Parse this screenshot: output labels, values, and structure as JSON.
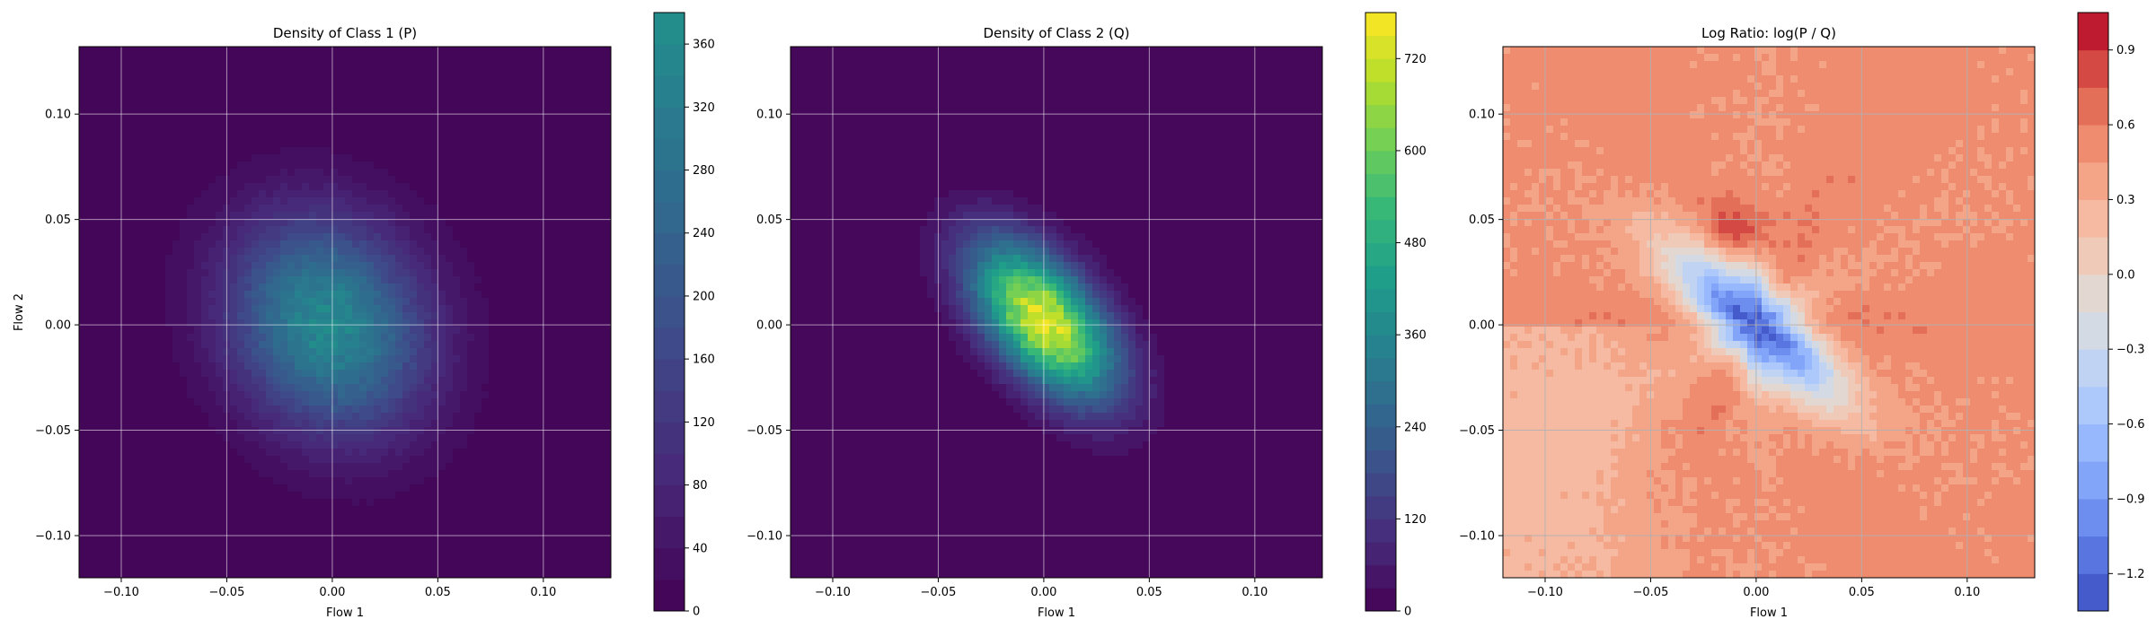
{
  "chart_data": [
    {
      "type": "contour",
      "title": "Density of Class 1 (P)",
      "xlabel": "Flow 1",
      "ylabel": "Flow 2",
      "xlim": [
        -0.12,
        0.132
      ],
      "ylim": [
        -0.12,
        0.132
      ],
      "xticks": [
        -0.1,
        -0.05,
        0.0,
        0.05,
        0.1
      ],
      "yticks": [
        -0.1,
        -0.05,
        0.0,
        0.05,
        0.1
      ],
      "xtick_labels": [
        "−0.10",
        "−0.05",
        "0.00",
        "0.05",
        "0.10"
      ],
      "ytick_labels": [
        "−0.10",
        "−0.05",
        "0.00",
        "0.05",
        "0.10"
      ],
      "grid": true,
      "colormap": "viridis",
      "colorbar": {
        "range": [
          0,
          380
        ],
        "ticks": [
          0,
          40,
          80,
          120,
          160,
          200,
          240,
          280,
          320,
          360
        ],
        "tick_labels": [
          "0",
          "40",
          "80",
          "120",
          "160",
          "200",
          "240",
          "280",
          "320",
          "360"
        ],
        "levels": 19,
        "cmap_top_fraction": 0.5
      },
      "density": {
        "center": [
          -0.002,
          0.0
        ],
        "spread": [
          0.032,
          0.035
        ],
        "correlation": -0.15,
        "peak": 360
      }
    },
    {
      "type": "contour",
      "title": "Density of Class 2 (Q)",
      "xlabel": "Flow 1",
      "ylabel": "",
      "xlim": [
        -0.12,
        0.132
      ],
      "ylim": [
        -0.12,
        0.132
      ],
      "xticks": [
        -0.1,
        -0.05,
        0.0,
        0.05,
        0.1
      ],
      "yticks": [
        -0.1,
        -0.05,
        0.0,
        0.05,
        0.1
      ],
      "xtick_labels": [
        "−0.10",
        "−0.05",
        "0.00",
        "0.05",
        "0.10"
      ],
      "ytick_labels": [
        "−0.10",
        "−0.05",
        "0.00",
        "0.05",
        "0.10"
      ],
      "grid": true,
      "colormap": "viridis",
      "colorbar": {
        "range": [
          0,
          780
        ],
        "ticks": [
          0,
          120,
          240,
          360,
          480,
          600,
          720
        ],
        "tick_labels": [
          "0",
          "120",
          "240",
          "360",
          "480",
          "600",
          "720"
        ],
        "levels": 26,
        "cmap_top_fraction": 1.0
      },
      "density": {
        "center": [
          0.0,
          0.002
        ],
        "spread": [
          0.023,
          0.025
        ],
        "correlation": -0.55,
        "peak": 760
      }
    },
    {
      "type": "contour",
      "title": "Log Ratio: log(P / Q)",
      "xlabel": "Flow 1",
      "ylabel": "",
      "xlim": [
        -0.12,
        0.132
      ],
      "ylim": [
        -0.12,
        0.132
      ],
      "xticks": [
        -0.1,
        -0.05,
        0.0,
        0.05,
        0.1
      ],
      "yticks": [
        -0.1,
        -0.05,
        0.0,
        0.05,
        0.1
      ],
      "xtick_labels": [
        "−0.10",
        "−0.05",
        "0.00",
        "0.05",
        "0.10"
      ],
      "ytick_labels": [
        "−0.10",
        "−0.05",
        "0.00",
        "0.05",
        "0.10"
      ],
      "grid": true,
      "colormap": "coolwarm",
      "colorbar": {
        "range": [
          -1.35,
          1.05
        ],
        "ticks": [
          -1.2,
          -0.9,
          -0.6,
          -0.3,
          0.0,
          0.3,
          0.6,
          0.9
        ],
        "tick_labels": [
          "−1.2",
          "−0.9",
          "−0.6",
          "−0.3",
          "0.0",
          "0.3",
          "0.6",
          "0.9"
        ],
        "levels": 16
      },
      "ratio_model": {
        "background": 0.5,
        "low_center": [
          0.0,
          0.0
        ],
        "low_value": -1.2,
        "high_spot": [
          -0.01,
          0.045
        ],
        "high_value": 0.95
      }
    }
  ]
}
